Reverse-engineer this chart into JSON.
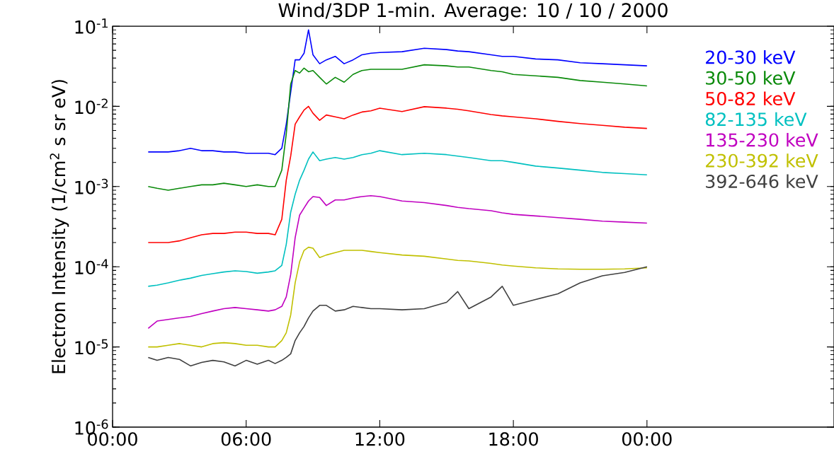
{
  "chart_data": {
    "type": "line",
    "title": "Wind/3DP 1-min. Average: 10 / 10 / 2000",
    "ylabel": "Electron Intensity (1/cm$^{2}$ s sr eV)",
    "log": true,
    "legend": "top right",
    "xlim": [
      0,
      32.4
    ],
    "ylim": [
      1e-06,
      0.1
    ],
    "xticks": [
      {
        "value": 0,
        "label": "00:00"
      },
      {
        "value": 6,
        "label": "06:00"
      },
      {
        "value": 12,
        "label": "12:00"
      },
      {
        "value": 18,
        "label": "18:00"
      },
      {
        "value": 24,
        "label": "00:00"
      }
    ],
    "yticks": [
      {
        "value": 1e-06,
        "label": "10$^{-6}$"
      },
      {
        "value": 1e-05,
        "label": "10$^{-5}$"
      },
      {
        "value": 0.0001,
        "label": "10$^{-4}$"
      },
      {
        "value": 0.001,
        "label": "10$^{-3}$"
      },
      {
        "value": 0.01,
        "label": "10$^{-2}$"
      },
      {
        "value": 0.1,
        "label": "10$^{-1}$"
      }
    ],
    "x": [
      1.6,
      2.0,
      2.5,
      3.0,
      3.5,
      4.0,
      4.5,
      5.0,
      5.5,
      6.0,
      6.5,
      7.0,
      7.3,
      7.6,
      7.8,
      8.0,
      8.2,
      8.4,
      8.6,
      8.8,
      9.0,
      9.3,
      9.6,
      10.0,
      10.4,
      10.8,
      11.2,
      11.6,
      12.0,
      13.0,
      14.0,
      15.0,
      15.5,
      16.0,
      17.0,
      17.5,
      18.0,
      19.0,
      20.0,
      21.0,
      22.0,
      23.0,
      24.0
    ],
    "series": [
      {
        "name": "20-30 keV",
        "color": "#0000ff",
        "values": [
          0.0027,
          0.0027,
          0.0027,
          0.0028,
          0.003,
          0.0028,
          0.0028,
          0.0027,
          0.0027,
          0.0026,
          0.0026,
          0.0026,
          0.0025,
          0.003,
          0.006,
          0.015,
          0.038,
          0.038,
          0.046,
          0.09,
          0.044,
          0.034,
          0.038,
          0.042,
          0.034,
          0.038,
          0.044,
          0.046,
          0.047,
          0.048,
          0.053,
          0.051,
          0.049,
          0.048,
          0.044,
          0.042,
          0.042,
          0.039,
          0.038,
          0.035,
          0.034,
          0.033,
          0.032
        ]
      },
      {
        "name": "30-50 keV",
        "color": "#0a8a0a",
        "values": [
          0.001,
          0.00095,
          0.0009,
          0.00095,
          0.001,
          0.00105,
          0.00105,
          0.0011,
          0.00105,
          0.001,
          0.00105,
          0.001,
          0.001,
          0.0016,
          0.0045,
          0.019,
          0.028,
          0.026,
          0.03,
          0.027,
          0.028,
          0.023,
          0.019,
          0.023,
          0.02,
          0.025,
          0.028,
          0.029,
          0.029,
          0.029,
          0.033,
          0.032,
          0.031,
          0.031,
          0.028,
          0.027,
          0.025,
          0.024,
          0.023,
          0.021,
          0.02,
          0.019,
          0.018
        ]
      },
      {
        "name": "50-82 keV",
        "color": "#ff0000",
        "values": [
          0.0002,
          0.0002,
          0.0002,
          0.00021,
          0.00023,
          0.00025,
          0.00026,
          0.00026,
          0.00027,
          0.00027,
          0.00026,
          0.00026,
          0.00025,
          0.00039,
          0.0012,
          0.0024,
          0.006,
          0.0074,
          0.009,
          0.01,
          0.0082,
          0.0067,
          0.0078,
          0.0074,
          0.007,
          0.0078,
          0.0085,
          0.0088,
          0.0095,
          0.0086,
          0.0099,
          0.0095,
          0.0092,
          0.0088,
          0.0079,
          0.0076,
          0.0074,
          0.007,
          0.0065,
          0.0061,
          0.0058,
          0.0055,
          0.0053
        ]
      },
      {
        "name": "82-135 keV",
        "color": "#00c0c0",
        "values": [
          5.7e-05,
          5.9e-05,
          6.3e-05,
          6.8e-05,
          7.2e-05,
          7.8e-05,
          8.2e-05,
          8.6e-05,
          8.9e-05,
          8.7e-05,
          8.3e-05,
          8.6e-05,
          8.9e-05,
          0.000104,
          0.00019,
          0.00048,
          0.0008,
          0.0012,
          0.0016,
          0.0022,
          0.0027,
          0.0021,
          0.0022,
          0.0023,
          0.0022,
          0.0023,
          0.0025,
          0.0026,
          0.0028,
          0.0025,
          0.0026,
          0.0025,
          0.0024,
          0.0023,
          0.0021,
          0.0021,
          0.002,
          0.0018,
          0.0017,
          0.0016,
          0.0015,
          0.00145,
          0.0014
        ]
      },
      {
        "name": "135-230 keV",
        "color": "#c000c0",
        "values": [
          1.7e-05,
          2.1e-05,
          2.2e-05,
          2.3e-05,
          2.4e-05,
          2.6e-05,
          2.8e-05,
          3e-05,
          3.1e-05,
          3e-05,
          2.9e-05,
          2.8e-05,
          2.9e-05,
          3.2e-05,
          4.2e-05,
          8e-05,
          0.00023,
          0.00044,
          0.00054,
          0.00066,
          0.00075,
          0.00073,
          0.00058,
          0.00068,
          0.00068,
          0.00072,
          0.00075,
          0.00077,
          0.00075,
          0.00066,
          0.00063,
          0.00058,
          0.00055,
          0.00053,
          0.0005,
          0.00047,
          0.00045,
          0.00043,
          0.00041,
          0.00039,
          0.00037,
          0.00036,
          0.00035
        ]
      },
      {
        "name": "230-392 keV",
        "color": "#c0c000",
        "values": [
          1e-05,
          1e-05,
          1.05e-05,
          1.1e-05,
          1.05e-05,
          1e-05,
          1.1e-05,
          1.13e-05,
          1.1e-05,
          1.05e-05,
          1.05e-05,
          1e-05,
          1e-05,
          1.2e-05,
          1.5e-05,
          2.5e-05,
          6.3e-05,
          0.000115,
          0.00016,
          0.000175,
          0.00017,
          0.00013,
          0.00014,
          0.00015,
          0.00016,
          0.00016,
          0.00016,
          0.000155,
          0.00015,
          0.00014,
          0.000135,
          0.000125,
          0.00012,
          0.000118,
          0.00011,
          0.000105,
          0.000102,
          9.7e-05,
          9.4e-05,
          9.3e-05,
          9.3e-05,
          9.4e-05,
          9.7e-05
        ]
      },
      {
        "name": "392-646 keV",
        "color": "#404040",
        "values": [
          7.4e-06,
          6.8e-06,
          7.4e-06,
          7e-06,
          5.8e-06,
          6.4e-06,
          6.8e-06,
          6.5e-06,
          5.8e-06,
          6.8e-06,
          6.1e-06,
          6.8e-06,
          6.2e-06,
          6.8e-06,
          7.4e-06,
          8.2e-06,
          1.2e-05,
          1.5e-05,
          1.8e-05,
          2.3e-05,
          2.8e-05,
          3.3e-05,
          3.3e-05,
          2.8e-05,
          2.9e-05,
          3.2e-05,
          3.1e-05,
          3e-05,
          3e-05,
          2.9e-05,
          3e-05,
          3.6e-05,
          4.9e-05,
          3e-05,
          4.2e-05,
          5.7e-05,
          3.3e-05,
          3.9e-05,
          4.6e-05,
          6.3e-05,
          7.7e-05,
          8.5e-05,
          0.0001
        ]
      }
    ]
  }
}
